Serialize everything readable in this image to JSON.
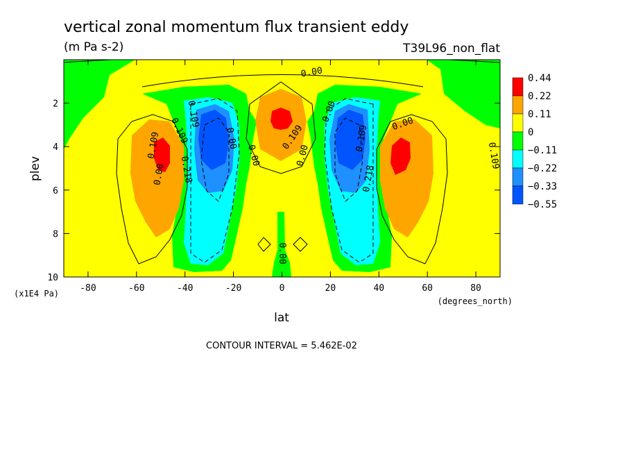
{
  "chart_data": {
    "type": "contour",
    "title": "vertical zonal momentum flux transient eddy",
    "units": "(m Pa s-2)",
    "experiment": "T39L96_non_flat",
    "xlabel": "lat",
    "x_units": "(degrees_north)",
    "ylabel": "plev",
    "y_units": "(x1E4 Pa)",
    "xlim": [
      -90,
      90
    ],
    "ylim": [
      10,
      0
    ],
    "x_ticks": [
      "-80",
      "-60",
      "-40",
      "-20",
      "0",
      "20",
      "40",
      "60",
      "80"
    ],
    "y_ticks": [
      "2",
      "4",
      "6",
      "8",
      "10"
    ],
    "contour_interval_text": "CONTOUR INTERVAL = 5.462E-02",
    "legend": {
      "labels": [
        "0.44",
        "0.22",
        "0.11",
        "0",
        "−0.11",
        "−0.22",
        "−0.33",
        "−0.55"
      ],
      "colors": [
        "#ff0000",
        "#ffa500",
        "#ffff00",
        "#00ff00",
        "#00ffff",
        "#1e90ff",
        "#0055ff"
      ]
    },
    "features": [
      {
        "lat": -48,
        "plev": 4.4,
        "max": "0.44",
        "sign": "positive"
      },
      {
        "lat": -27,
        "plev": 4.0,
        "min": "-0.55",
        "sign": "negative"
      },
      {
        "lat": 0,
        "plev": 2.9,
        "max": "0.44",
        "sign": "positive"
      },
      {
        "lat": 28,
        "plev": 4.0,
        "min": "-0.55",
        "sign": "negative"
      },
      {
        "lat": 48,
        "plev": 4.4,
        "max": "0.44",
        "sign": "positive"
      }
    ],
    "contour_labels": [
      "0.00",
      "0.109",
      "0.109",
      "0.00",
      "0.109",
      "0.218",
      "0.00",
      "0.109",
      "0.00",
      "0.00",
      "0.109",
      "0.218",
      "0.00",
      "0.109",
      "0.00",
      "0.00"
    ]
  }
}
